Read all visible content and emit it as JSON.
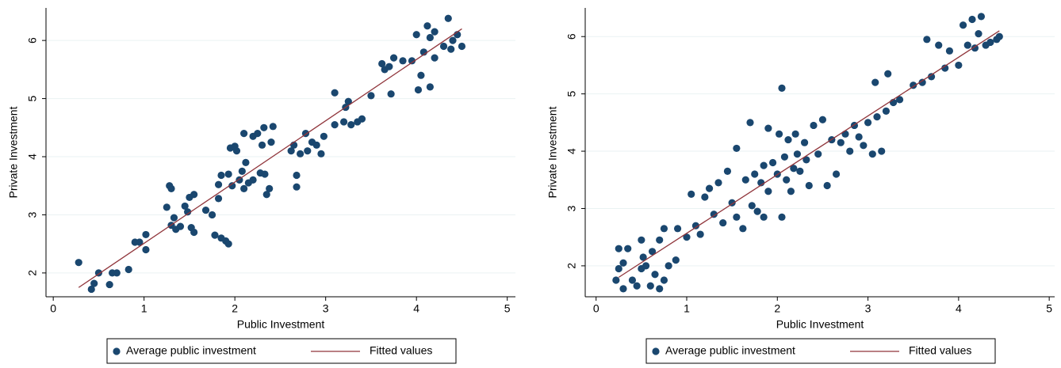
{
  "chart_data": [
    {
      "type": "scatter",
      "x_label": "Public Investment",
      "y_label": "Private Investment",
      "grid": true,
      "xlim": [
        -0.08,
        5.09
      ],
      "ylim": [
        1.59,
        6.56
      ],
      "xticks": [
        0,
        1,
        2,
        3,
        4,
        5
      ],
      "yticks": [
        2,
        3,
        4,
        5,
        6
      ],
      "series": [
        {
          "name": "Average public investment",
          "color": "#1a476f",
          "x": [
            0.28,
            0.42,
            0.45,
            0.5,
            0.62,
            0.65,
            0.7,
            0.83,
            0.9,
            0.95,
            1.02,
            1.02,
            1.25,
            1.28,
            1.3,
            1.3,
            1.33,
            1.35,
            1.4,
            1.45,
            1.48,
            1.5,
            1.55,
            1.52,
            1.55,
            1.68,
            1.75,
            1.78,
            1.82,
            1.82,
            1.85,
            1.85,
            1.9,
            1.93,
            1.93,
            1.95,
            1.97,
            2.0,
            2.02,
            2.05,
            2.08,
            2.1,
            2.1,
            2.12,
            2.15,
            2.2,
            2.2,
            2.25,
            2.28,
            2.3,
            2.32,
            2.33,
            2.35,
            2.38,
            2.4,
            2.42,
            2.62,
            2.65,
            2.68,
            2.68,
            2.72,
            2.78,
            2.8,
            2.85,
            2.9,
            2.95,
            2.98,
            3.1,
            3.1,
            3.2,
            3.22,
            3.25,
            3.28,
            3.35,
            3.4,
            3.5,
            3.62,
            3.65,
            3.7,
            3.72,
            3.75,
            3.85,
            3.95,
            4.0,
            4.02,
            4.05,
            4.08,
            4.12,
            4.15,
            4.15,
            4.2,
            4.2,
            4.3,
            4.35,
            4.38,
            4.4,
            4.45,
            4.5
          ],
          "values": [
            2.18,
            1.72,
            1.82,
            2.0,
            1.8,
            2.0,
            2.0,
            2.06,
            2.53,
            2.53,
            2.66,
            2.4,
            3.13,
            3.5,
            3.45,
            2.82,
            2.95,
            2.75,
            2.8,
            3.15,
            3.05,
            3.3,
            3.35,
            2.78,
            2.7,
            3.08,
            3.0,
            2.65,
            3.28,
            3.52,
            3.68,
            2.6,
            2.55,
            2.5,
            3.7,
            4.15,
            3.5,
            4.18,
            4.1,
            3.6,
            3.75,
            4.4,
            3.45,
            3.9,
            3.55,
            4.35,
            3.6,
            4.4,
            3.72,
            4.2,
            4.5,
            3.7,
            3.35,
            3.45,
            4.25,
            4.52,
            4.1,
            4.2,
            3.48,
            3.68,
            4.05,
            4.4,
            4.1,
            4.25,
            4.2,
            4.05,
            4.35,
            5.1,
            4.55,
            4.6,
            4.85,
            4.95,
            4.55,
            4.6,
            4.65,
            5.05,
            5.6,
            5.5,
            5.55,
            5.08,
            5.7,
            5.65,
            5.65,
            6.1,
            5.15,
            5.4,
            5.8,
            6.25,
            5.2,
            6.05,
            6.15,
            5.7,
            5.9,
            6.38,
            5.85,
            6.0,
            6.1,
            5.9
          ]
        },
        {
          "name": "Fitted values",
          "type": "line",
          "color": "#90353b",
          "x": [
            0.28,
            4.5
          ],
          "values": [
            1.75,
            6.2
          ]
        }
      ]
    },
    {
      "type": "scatter",
      "x_label": "Public Investment",
      "y_label": "Private Investment",
      "grid": true,
      "xlim": [
        -0.12,
        5.06
      ],
      "ylim": [
        1.46,
        6.5
      ],
      "xticks": [
        0,
        1,
        2,
        3,
        4,
        5
      ],
      "yticks": [
        2,
        3,
        4,
        5,
        6
      ],
      "series": [
        {
          "name": "Average public investment",
          "color": "#1a476f",
          "x": [
            0.22,
            0.25,
            0.25,
            0.3,
            0.3,
            0.35,
            0.4,
            0.45,
            0.5,
            0.5,
            0.52,
            0.55,
            0.6,
            0.62,
            0.65,
            0.7,
            0.7,
            0.75,
            0.75,
            0.8,
            0.88,
            0.9,
            1.0,
            1.05,
            1.1,
            1.15,
            1.2,
            1.25,
            1.3,
            1.35,
            1.4,
            1.45,
            1.5,
            1.55,
            1.55,
            1.62,
            1.65,
            1.7,
            1.72,
            1.75,
            1.78,
            1.82,
            1.85,
            1.85,
            1.9,
            1.9,
            1.95,
            2.0,
            2.02,
            2.05,
            2.05,
            2.08,
            2.1,
            2.12,
            2.15,
            2.18,
            2.2,
            2.22,
            2.25,
            2.3,
            2.32,
            2.35,
            2.4,
            2.45,
            2.5,
            2.55,
            2.6,
            2.65,
            2.7,
            2.75,
            2.8,
            2.85,
            2.9,
            2.95,
            3.0,
            3.05,
            3.08,
            3.1,
            3.15,
            3.2,
            3.22,
            3.28,
            3.35,
            3.5,
            3.6,
            3.65,
            3.7,
            3.78,
            3.85,
            3.9,
            4.0,
            4.05,
            4.1,
            4.15,
            4.18,
            4.22,
            4.25,
            4.3,
            4.35,
            4.42,
            4.45
          ],
          "values": [
            1.75,
            2.3,
            1.95,
            1.6,
            2.05,
            2.3,
            1.75,
            1.65,
            2.45,
            1.95,
            2.15,
            2.0,
            1.65,
            2.25,
            1.85,
            2.45,
            1.6,
            2.65,
            1.75,
            2.0,
            2.1,
            2.65,
            2.5,
            3.25,
            2.7,
            2.55,
            3.2,
            3.35,
            2.9,
            3.45,
            2.75,
            3.65,
            3.1,
            4.05,
            2.85,
            2.65,
            3.5,
            4.5,
            3.05,
            3.6,
            2.95,
            3.45,
            3.75,
            2.85,
            4.4,
            3.3,
            3.8,
            3.6,
            4.3,
            2.85,
            5.1,
            3.9,
            3.5,
            4.2,
            3.3,
            3.7,
            4.3,
            3.95,
            3.65,
            4.15,
            3.85,
            3.4,
            4.45,
            3.95,
            4.55,
            3.4,
            4.2,
            3.6,
            4.15,
            4.3,
            4.0,
            4.45,
            4.25,
            4.1,
            4.5,
            3.95,
            5.2,
            4.6,
            4.0,
            4.7,
            5.35,
            4.85,
            4.9,
            5.15,
            5.2,
            5.95,
            5.3,
            5.85,
            5.45,
            5.75,
            5.5,
            6.2,
            5.85,
            6.3,
            5.8,
            6.05,
            6.35,
            5.85,
            5.9,
            5.95,
            6.0
          ]
        },
        {
          "name": "Fitted values",
          "type": "line",
          "color": "#90353b",
          "x": [
            0.25,
            4.45
          ],
          "values": [
            1.8,
            6.1
          ]
        }
      ]
    }
  ]
}
